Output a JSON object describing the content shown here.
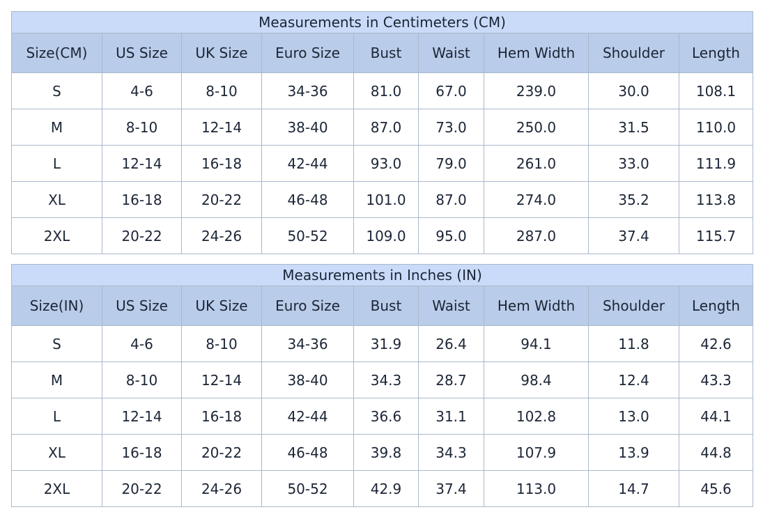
{
  "tables": [
    {
      "title": "Measurements in Centimeters (CM)",
      "header": [
        "Size(CM)",
        "US Size",
        "UK Size",
        "Euro Size",
        "Bust",
        "Waist",
        "Hem Width",
        "Shoulder",
        "Length"
      ],
      "rows": [
        [
          "S",
          "4-6",
          "8-10",
          "34-36",
          "81.0",
          "67.0",
          "239.0",
          "30.0",
          "108.1"
        ],
        [
          "M",
          "8-10",
          "12-14",
          "38-40",
          "87.0",
          "73.0",
          "250.0",
          "31.5",
          "110.0"
        ],
        [
          "L",
          "12-14",
          "16-18",
          "42-44",
          "93.0",
          "79.0",
          "261.0",
          "33.0",
          "111.9"
        ],
        [
          "XL",
          "16-18",
          "20-22",
          "46-48",
          "101.0",
          "87.0",
          "274.0",
          "35.2",
          "113.8"
        ],
        [
          "2XL",
          "20-22",
          "24-26",
          "50-52",
          "109.0",
          "95.0",
          "287.0",
          "37.4",
          "115.7"
        ]
      ]
    },
    {
      "title": "Measurements in Inches (IN)",
      "header": [
        "Size(IN)",
        "US Size",
        "UK Size",
        "Euro Size",
        "Bust",
        "Waist",
        "Hem Width",
        "Shoulder",
        "Length"
      ],
      "rows": [
        [
          "S",
          "4-6",
          "8-10",
          "34-36",
          "31.9",
          "26.4",
          "94.1",
          "11.8",
          "42.6"
        ],
        [
          "M",
          "8-10",
          "12-14",
          "38-40",
          "34.3",
          "28.7",
          "98.4",
          "12.4",
          "43.3"
        ],
        [
          "L",
          "12-14",
          "16-18",
          "42-44",
          "36.6",
          "31.1",
          "102.8",
          "13.0",
          "44.1"
        ],
        [
          "XL",
          "16-18",
          "20-22",
          "46-48",
          "39.8",
          "34.3",
          "107.9",
          "13.9",
          "44.8"
        ],
        [
          "2XL",
          "20-22",
          "24-26",
          "50-52",
          "42.9",
          "37.4",
          "113.0",
          "14.7",
          "45.6"
        ]
      ]
    }
  ]
}
